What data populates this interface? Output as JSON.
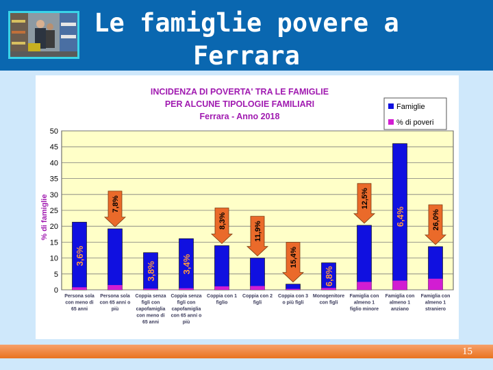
{
  "slide": {
    "title_line1": "Le famiglie povere a",
    "title_line2": "Ferrara",
    "page_number": "15"
  },
  "chart_data": {
    "type": "bar",
    "title": [
      "INCIDENZA DI POVERTA' TRA LE FAMIGLIE",
      "PER ALCUNE TIPOLOGIE FAMILIARI",
      "Ferrara - Anno 2018"
    ],
    "ylabel": "% di famiglie",
    "ylim": [
      0,
      50
    ],
    "yticks": [
      0,
      5,
      10,
      15,
      20,
      25,
      30,
      35,
      40,
      45,
      50
    ],
    "legend_position": "top-right",
    "categories": [
      [
        "Persona sola",
        "con meno di",
        "65 anni"
      ],
      [
        "Persona sola",
        "con 65 anni o",
        "più"
      ],
      [
        "Coppia senza",
        "figli con",
        "capofamiglia",
        "con meno di",
        "65 anni"
      ],
      [
        "Coppia senza",
        "figli con",
        "capofamiglia",
        "con 65 anni o",
        "più"
      ],
      [
        "Coppia con 1",
        "figlio"
      ],
      [
        "Coppia con 2",
        "figli"
      ],
      [
        "Coppia con 3",
        "o più figli"
      ],
      [
        "Monogenitore",
        "con figli"
      ],
      [
        "Famiglia con",
        "almeno 1",
        "figlio minore"
      ],
      [
        "Famiglia con",
        "almeno 1",
        "anziano"
      ],
      [
        "Famiglia con",
        "almeno 1",
        "straniero"
      ]
    ],
    "series": [
      {
        "name": "Famiglie",
        "color": "#1010e0",
        "values": [
          21.3,
          19.2,
          11.7,
          16.1,
          13.9,
          10.0,
          1.8,
          8.5,
          20.3,
          46.0,
          13.6
        ]
      },
      {
        "name": "% di poveri",
        "color": "#d21dd2",
        "values": [
          0.8,
          1.5,
          0.4,
          0.5,
          1.1,
          1.2,
          0.3,
          0.6,
          2.5,
          2.9,
          3.5
        ]
      }
    ],
    "annotations": [
      {
        "text": "3,6%",
        "type": "inside",
        "category": 0
      },
      {
        "text": "7,8%",
        "type": "arrow",
        "category": 1
      },
      {
        "text": "3,8%",
        "type": "inside",
        "category": 2
      },
      {
        "text": "3,4%",
        "type": "inside",
        "category": 3
      },
      {
        "text": "8,3%",
        "type": "arrow",
        "category": 4
      },
      {
        "text": "11,9%",
        "type": "arrow",
        "category": 5
      },
      {
        "text": "15,4%",
        "type": "arrow",
        "category": 6
      },
      {
        "text": "6,8%",
        "type": "inside",
        "category": 7
      },
      {
        "text": "12,5%",
        "type": "arrow",
        "category": 8
      },
      {
        "text": "6,4%",
        "type": "inside",
        "category": 9
      },
      {
        "text": "26,0%",
        "type": "arrow",
        "category": 10
      }
    ],
    "colors": {
      "plot_background": "#ffffc8",
      "gridline": "#7a7a7a",
      "arrow_fill": "#ea6a2a"
    }
  }
}
